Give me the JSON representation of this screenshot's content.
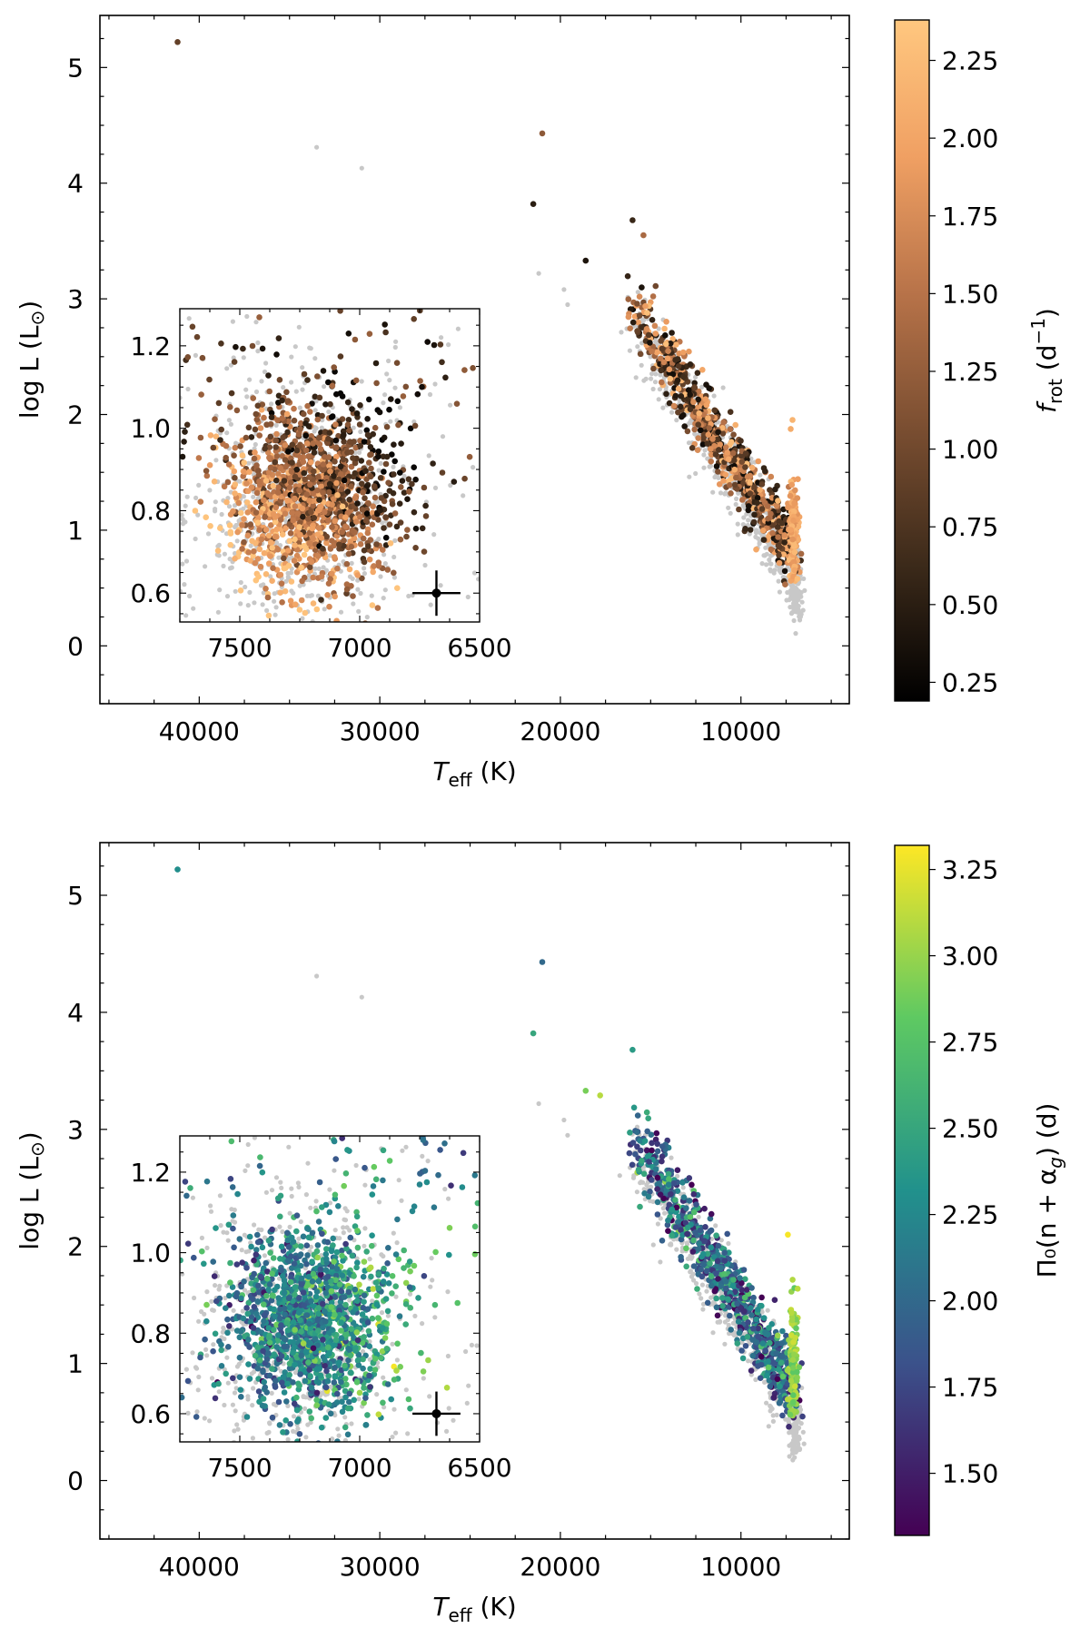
{
  "chart_data": [
    {
      "type": "scatter",
      "panel": "top",
      "xlabel": {
        "main": "T",
        "sub": "eff",
        "unit": " (K)"
      },
      "ylabel": {
        "main": "log L (L",
        "sun": "⊙",
        "close": ")"
      },
      "xlim": [
        45500,
        4000
      ],
      "ylim": [
        -0.5,
        5.45
      ],
      "x_axis_inverted": true,
      "xticks": [
        40000,
        30000,
        20000,
        10000
      ],
      "yticks": [
        0,
        1,
        2,
        3,
        4,
        5
      ],
      "colorbar": {
        "label": {
          "main": "f",
          "sub": "rot",
          "unit": " (d",
          "sup": "−1",
          "close": ")"
        },
        "colormap": "copper",
        "range": [
          0.19,
          2.38
        ],
        "ticks": [
          "0.25",
          "0.50",
          "0.75",
          "1.00",
          "1.25",
          "1.50",
          "1.75",
          "2.00",
          "2.25"
        ],
        "stops": [
          "#000000",
          "#3c2a1a",
          "#7a4e31",
          "#b87349",
          "#f0a063",
          "#ffc77f"
        ]
      },
      "colored_points": [
        {
          "x": 41200,
          "y": 5.22,
          "c": 0.9
        },
        {
          "x": 21000,
          "y": 4.43,
          "c": 1.2
        },
        {
          "x": 21500,
          "y": 3.82,
          "c": 0.5
        },
        {
          "x": 18600,
          "y": 3.33,
          "c": 0.4
        },
        {
          "x": 16000,
          "y": 3.68,
          "c": 0.6
        },
        {
          "x": 15400,
          "y": 3.55,
          "c": 1.4
        }
      ],
      "gray_points": [
        {
          "x": 33500,
          "y": 4.31
        },
        {
          "x": 31000,
          "y": 4.13
        },
        {
          "x": 21200,
          "y": 3.22
        },
        {
          "x": 19800,
          "y": 3.08
        },
        {
          "x": 19600,
          "y": 2.95
        }
      ],
      "main_sequence": {
        "x_from": 16000,
        "x_to": 7000,
        "y_from": 2.95,
        "y_to": 0.75
      },
      "inset": {
        "xlim": [
          7750,
          6500
        ],
        "ylim": [
          0.53,
          1.29
        ],
        "xticks": [
          7500,
          7000,
          6500
        ],
        "yticks": [
          "0.6",
          "0.8",
          "1.0",
          "1.2"
        ],
        "errorbar": {
          "x": 6680,
          "y": 0.6,
          "xerr": 100,
          "yerr": 0.055
        }
      }
    },
    {
      "type": "scatter",
      "panel": "bottom",
      "xlabel": {
        "main": "T",
        "sub": "eff",
        "unit": " (K)"
      },
      "ylabel": {
        "main": "log L (L",
        "sun": "⊙",
        "close": ")"
      },
      "xlim": [
        45500,
        4000
      ],
      "ylim": [
        -0.5,
        5.45
      ],
      "x_axis_inverted": true,
      "xticks": [
        40000,
        30000,
        20000,
        10000
      ],
      "yticks": [
        0,
        1,
        2,
        3,
        4,
        5
      ],
      "colorbar": {
        "label": {
          "text": "Π₀(n + α",
          "sub": "g",
          "close": ") (d)"
        },
        "colormap": "viridis",
        "range": [
          1.32,
          3.32
        ],
        "ticks": [
          "1.50",
          "1.75",
          "2.00",
          "2.25",
          "2.50",
          "2.75",
          "3.00",
          "3.25"
        ],
        "stops": [
          "#440154",
          "#3b528b",
          "#21918c",
          "#5ec962",
          "#fde725"
        ]
      },
      "colored_points": [
        {
          "x": 41200,
          "y": 5.22,
          "c": 2.3
        },
        {
          "x": 21000,
          "y": 4.43,
          "c": 2.0
        },
        {
          "x": 21500,
          "y": 3.82,
          "c": 2.5
        },
        {
          "x": 18600,
          "y": 3.33,
          "c": 2.9
        },
        {
          "x": 17800,
          "y": 3.29,
          "c": 3.1
        },
        {
          "x": 16000,
          "y": 3.68,
          "c": 2.4
        },
        {
          "x": 7400,
          "y": 2.1,
          "c": 3.3
        }
      ],
      "gray_points": [
        {
          "x": 33500,
          "y": 4.31
        },
        {
          "x": 31000,
          "y": 4.13
        },
        {
          "x": 21200,
          "y": 3.22
        },
        {
          "x": 19800,
          "y": 3.08
        },
        {
          "x": 19600,
          "y": 2.95
        }
      ],
      "main_sequence": {
        "x_from": 16000,
        "x_to": 7000,
        "y_from": 2.95,
        "y_to": 0.75
      },
      "inset": {
        "xlim": [
          7750,
          6500
        ],
        "ylim": [
          0.53,
          1.29
        ],
        "xticks": [
          7500,
          7000,
          6500
        ],
        "yticks": [
          "0.6",
          "0.8",
          "1.0",
          "1.2"
        ],
        "errorbar": {
          "x": 6680,
          "y": 0.6,
          "xerr": 100,
          "yerr": 0.055
        }
      }
    }
  ]
}
